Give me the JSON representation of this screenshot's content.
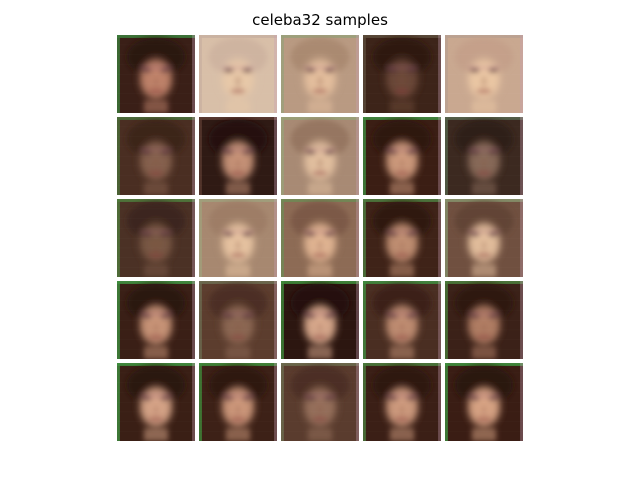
{
  "figure": {
    "title": "celeba32 samples"
  },
  "grid": {
    "rows": 5,
    "cols": 5,
    "samples": [
      {
        "row": 0,
        "col": 0,
        "bg": "#3a1f17",
        "edge": "#3c7a3a",
        "skin": "#c98a70",
        "hair": "#2a1510",
        "brightness": "dark"
      },
      {
        "row": 0,
        "col": 1,
        "bg": "#d8bfa8",
        "edge": "#c9b0a0",
        "skin": "#e9c9a8",
        "hair": "#cdb3a0",
        "brightness": "light"
      },
      {
        "row": 0,
        "col": 2,
        "bg": "#b99a82",
        "edge": "#9aa07a",
        "skin": "#e7c19f",
        "hair": "#a98870",
        "brightness": "light"
      },
      {
        "row": 0,
        "col": 3,
        "bg": "#3d2419",
        "edge": "#5a4a3a",
        "skin": "#6e4a3a",
        "hair": "#2d1a12",
        "brightness": "dark"
      },
      {
        "row": 0,
        "col": 4,
        "bg": "#c9a890",
        "edge": "#b9a090",
        "skin": "#edc9a5",
        "hair": "#c4a089",
        "brightness": "light"
      },
      {
        "row": 1,
        "col": 0,
        "bg": "#4a2e22",
        "edge": "#4a6e3a",
        "skin": "#8a6450",
        "hair": "#3a2218",
        "brightness": "dark"
      },
      {
        "row": 1,
        "col": 1,
        "bg": "#2f1a14",
        "edge": "#5a3a30",
        "skin": "#d09a7e",
        "hair": "#241310",
        "brightness": "dark"
      },
      {
        "row": 1,
        "col": 2,
        "bg": "#a88a74",
        "edge": "#98a078",
        "skin": "#e6c3a2",
        "hair": "#93735e",
        "brightness": "light"
      },
      {
        "row": 1,
        "col": 3,
        "bg": "#3b1e14",
        "edge": "#3f8a3e",
        "skin": "#d7a283",
        "hair": "#2c140e",
        "brightness": "dark"
      },
      {
        "row": 1,
        "col": 4,
        "bg": "#3c2920",
        "edge": "#54624a",
        "skin": "#8d6e5c",
        "hair": "#2f1d16",
        "brightness": "dark"
      },
      {
        "row": 2,
        "col": 0,
        "bg": "#4b3125",
        "edge": "#4f7a3c",
        "skin": "#7c5a46",
        "hair": "#3b251c",
        "brightness": "dark"
      },
      {
        "row": 2,
        "col": 1,
        "bg": "#a78870",
        "edge": "#a0a07c",
        "skin": "#ebc7a4",
        "hair": "#9c7c65",
        "brightness": "light"
      },
      {
        "row": 2,
        "col": 2,
        "bg": "#8d6b55",
        "edge": "#6f8a55",
        "skin": "#e6b996",
        "hair": "#7a5845",
        "brightness": "light"
      },
      {
        "row": 2,
        "col": 3,
        "bg": "#3f2318",
        "edge": "#4c7a3e",
        "skin": "#c99678",
        "hair": "#2f1810",
        "brightness": "dark"
      },
      {
        "row": 2,
        "col": 4,
        "bg": "#705040",
        "edge": "#85906a",
        "skin": "#ebc6a3",
        "hair": "#604234",
        "brightness": "light"
      },
      {
        "row": 3,
        "col": 0,
        "bg": "#3a1f16",
        "edge": "#3f8f3f",
        "skin": "#d29c7e",
        "hair": "#2a140e",
        "brightness": "dark"
      },
      {
        "row": 3,
        "col": 1,
        "bg": "#5c3d2e",
        "edge": "#6b6a50",
        "skin": "#8f6a55",
        "hair": "#4a2f22",
        "brightness": "dark"
      },
      {
        "row": 3,
        "col": 2,
        "bg": "#2c1610",
        "edge": "#3e8a3a",
        "skin": "#e3b294",
        "hair": "#22100b",
        "brightness": "dark"
      },
      {
        "row": 3,
        "col": 3,
        "bg": "#4a2e22",
        "edge": "#3f8a3e",
        "skin": "#c79377",
        "hair": "#3a2018",
        "brightness": "dark"
      },
      {
        "row": 3,
        "col": 4,
        "bg": "#3b2118",
        "edge": "#4a7a3a",
        "skin": "#b98469",
        "hair": "#2d1710",
        "brightness": "dark"
      },
      {
        "row": 4,
        "col": 0,
        "bg": "#3a1f15",
        "edge": "#3f8f3e",
        "skin": "#e1ad8f",
        "hair": "#2a140d",
        "brightness": "dark"
      },
      {
        "row": 4,
        "col": 1,
        "bg": "#3d2117",
        "edge": "#3f8a3a",
        "skin": "#d69f81",
        "hair": "#2b150e",
        "brightness": "dark"
      },
      {
        "row": 4,
        "col": 2,
        "bg": "#5a3c2e",
        "edge": "#6c6a4e",
        "skin": "#9a735e",
        "hair": "#4a2f22",
        "brightness": "dark"
      },
      {
        "row": 4,
        "col": 3,
        "bg": "#3b1f16",
        "edge": "#4a7a3c",
        "skin": "#d8a385",
        "hair": "#2c150f",
        "brightness": "dark"
      },
      {
        "row": 4,
        "col": 4,
        "bg": "#3a1d14",
        "edge": "#3f8f3d",
        "skin": "#e3ad8c",
        "hair": "#2a140d",
        "brightness": "dark"
      }
    ]
  }
}
